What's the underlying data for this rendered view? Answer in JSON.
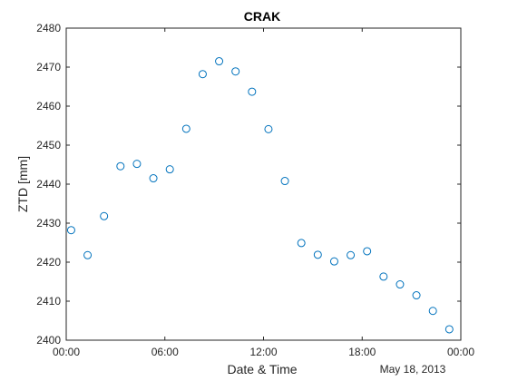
{
  "chart_data": {
    "type": "scatter",
    "title": "CRAK",
    "xlabel": "Date & Time",
    "ylabel": "ZTD [mm]",
    "date_label": "May 18, 2013",
    "x_unit": "hours",
    "xlim": [
      0,
      24
    ],
    "ylim": [
      2400,
      2480
    ],
    "grid": false,
    "x_ticks": [
      {
        "value": 0,
        "label": "00:00"
      },
      {
        "value": 6,
        "label": "06:00"
      },
      {
        "value": 12,
        "label": "12:00"
      },
      {
        "value": 18,
        "label": "18:00"
      },
      {
        "value": 24,
        "label": "00:00"
      }
    ],
    "y_ticks": [
      2400,
      2410,
      2420,
      2430,
      2440,
      2450,
      2460,
      2470,
      2480
    ],
    "marker_color": "#0072BD",
    "marker": "circle-open",
    "x": [
      0.3,
      1.3,
      2.3,
      3.3,
      4.3,
      5.3,
      6.3,
      7.3,
      8.3,
      9.3,
      10.3,
      11.3,
      12.3,
      13.3,
      14.3,
      15.3,
      16.3,
      17.3,
      18.3,
      19.3,
      20.3,
      21.3,
      22.3,
      23.3
    ],
    "y": [
      2428.2,
      2421.8,
      2431.8,
      2444.6,
      2445.2,
      2441.5,
      2443.8,
      2454.2,
      2468.2,
      2471.5,
      2468.9,
      2463.7,
      2454.1,
      2440.8,
      2424.9,
      2421.9,
      2420.2,
      2421.8,
      2422.8,
      2416.3,
      2414.3,
      2411.5,
      2407.5,
      2402.8
    ]
  }
}
